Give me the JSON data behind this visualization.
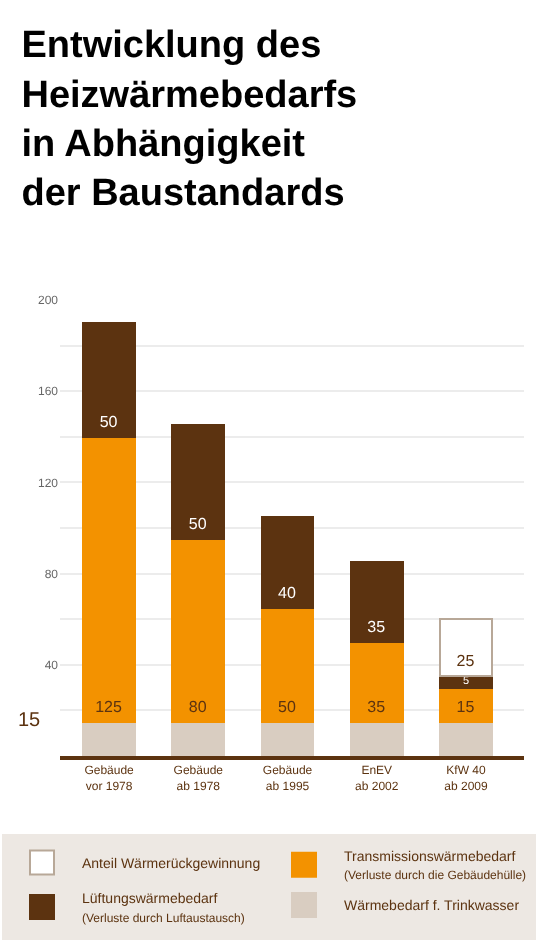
{
  "chart_data": {
    "type": "bar",
    "stacked": true,
    "title": "Entwicklung des\nHeizwärmebedarfs\nin Abhängigkeit\nder Baustandards",
    "categories": [
      "Gebäude\nvor 1978",
      "Gebäude\nab 1978",
      "Gebäude\nab 1995",
      "EnEV\nab 2002",
      "KfW 40\nab 2009"
    ],
    "series": [
      {
        "name": "Wärmebedarf f. Trinkwasser",
        "color": "#d9cdc1",
        "values": [
          15,
          15,
          15,
          15,
          15
        ]
      },
      {
        "name": "Transmissionswärmebedarf\n(Verluste durch die Gebäudehülle)",
        "color": "#f39200",
        "values": [
          125,
          80,
          50,
          35,
          15
        ],
        "value_labels": [
          "125",
          "80",
          "50",
          "35",
          "15"
        ]
      },
      {
        "name": "Lüftungswärmebedarf\n(Verluste durch Luftaustausch)",
        "color": "#5c3310",
        "values": [
          50,
          50,
          40,
          35,
          5
        ],
        "value_labels": [
          "50",
          "50",
          "40",
          "35",
          "5"
        ]
      },
      {
        "name": "Anteil Wärmerückgewinnung",
        "color": "#ffffff",
        "values": [
          null,
          null,
          null,
          null,
          25
        ],
        "value_labels": [
          null,
          null,
          null,
          null,
          "25"
        ]
      }
    ],
    "annotations": [
      "15"
    ],
    "ylim": [
      0,
      200
    ],
    "yticks": [
      {
        "value": 0,
        "label": null
      },
      {
        "value": 20,
        "label": null
      },
      40,
      {
        "value": 60,
        "label": null
      },
      80,
      {
        "value": 100,
        "label": null
      },
      120,
      {
        "value": 140,
        "label": null
      },
      160,
      {
        "value": 180,
        "label": null
      },
      200
    ],
    "grid": "y",
    "legend": "bottom"
  }
}
